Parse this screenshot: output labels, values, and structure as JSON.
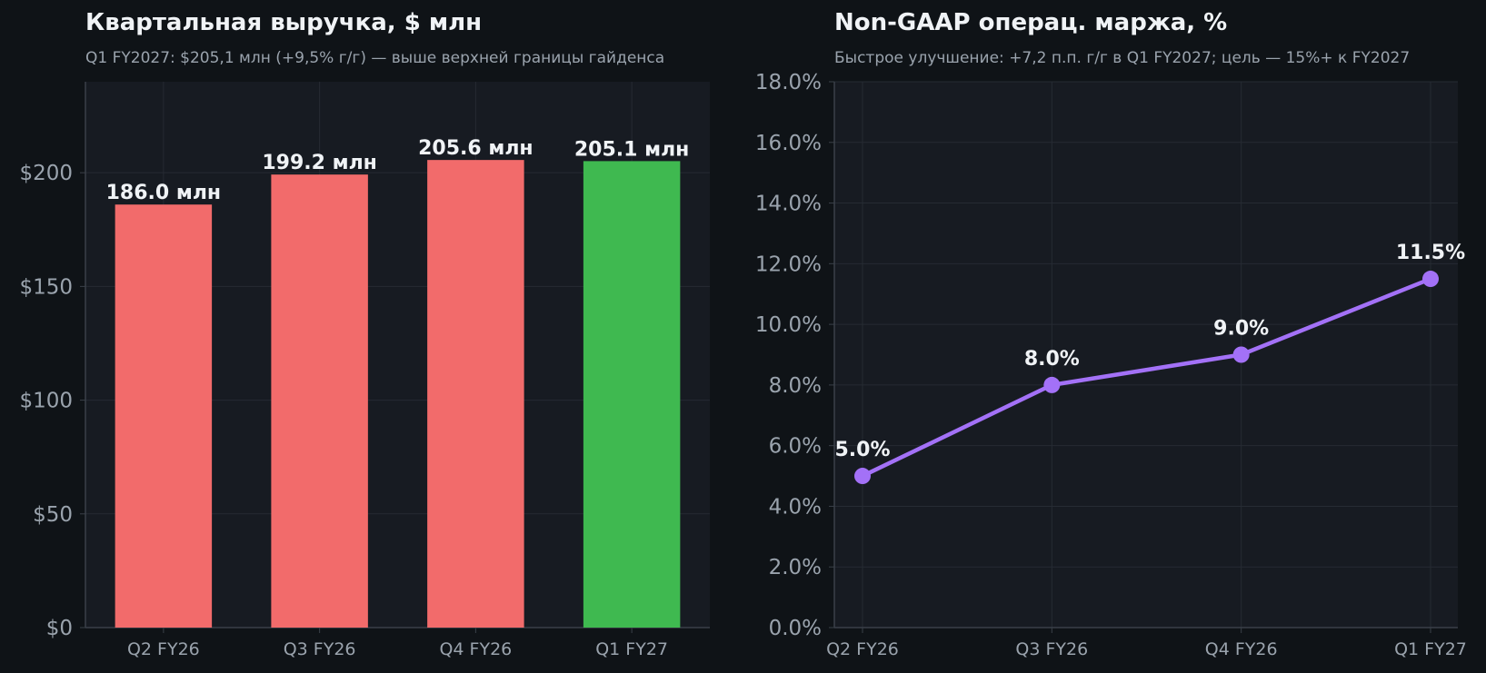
{
  "colors": {
    "page_bg": "#0f1317",
    "plot_bg": "#171b22",
    "grid": "#262b33",
    "axis": "#3a4049",
    "bar_prior": "#f26b6b",
    "bar_current": "#3fb950",
    "line": "#a371f7",
    "label": "#f0f3f6",
    "tick": "#9aa3ad"
  },
  "chart_data": [
    {
      "type": "bar",
      "title": "Квартальная выручка, $ млн",
      "subtitle": "Q1 FY2027: $205,1 млн (+9,5% г/г) — выше верхней границы гайденса",
      "categories": [
        "Q2 FY26",
        "Q3 FY26",
        "Q4 FY26",
        "Q1 FY27"
      ],
      "values": [
        186.0,
        199.2,
        205.6,
        205.1
      ],
      "value_labels": [
        "186.0 млн",
        "199.2 млн",
        "205.6 млн",
        "205.1 млн"
      ],
      "highlight_index": 3,
      "ylim": [
        0,
        240
      ],
      "yticks": [
        0,
        50,
        100,
        150,
        200
      ],
      "ytick_labels": [
        "$0",
        "$50",
        "$100",
        "$150",
        "$200"
      ],
      "grid": true
    },
    {
      "type": "line",
      "title": "Non-GAAP операц. маржа, %",
      "subtitle": "Быстрое улучшение: +7,2 п.п. г/г в Q1 FY2027; цель — 15%+ к FY2027",
      "categories": [
        "Q2 FY26",
        "Q3 FY26",
        "Q4 FY26",
        "Q1 FY27"
      ],
      "values": [
        5.0,
        8.0,
        9.0,
        11.5
      ],
      "value_labels": [
        "5.0%",
        "8.0%",
        "9.0%",
        "11.5%"
      ],
      "ylim": [
        0,
        18
      ],
      "yticks": [
        0,
        2,
        4,
        6,
        8,
        10,
        12,
        14,
        16,
        18
      ],
      "ytick_labels": [
        "0.0%",
        "2.0%",
        "4.0%",
        "6.0%",
        "8.0%",
        "10.0%",
        "12.0%",
        "14.0%",
        "16.0%",
        "18.0%"
      ],
      "grid": true
    }
  ]
}
